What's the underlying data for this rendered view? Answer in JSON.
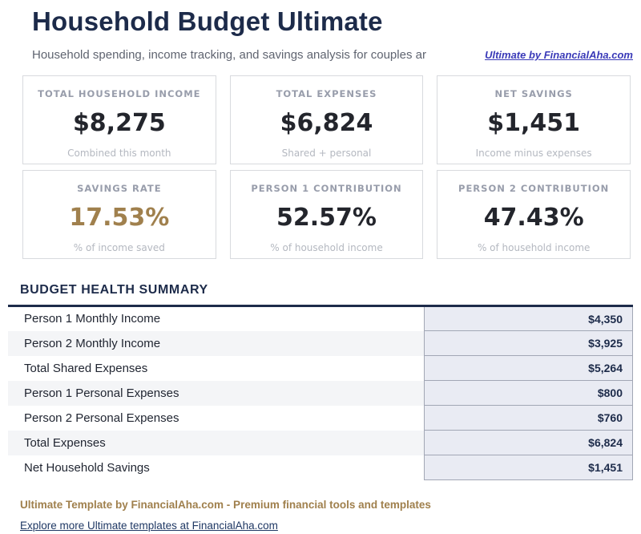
{
  "header": {
    "title": "Household Budget Ultimate",
    "subtitle": "Household spending, income tracking, and savings analysis for couples ar",
    "link_label": "Ultimate by FinancialAha.com"
  },
  "stats": [
    {
      "label": "TOTAL HOUSEHOLD INCOME",
      "value": "$8,275",
      "sub": "Combined this month",
      "value_color": "#23252c"
    },
    {
      "label": "TOTAL EXPENSES",
      "value": "$6,824",
      "sub": "Shared + personal",
      "value_color": "#23252c"
    },
    {
      "label": "NET SAVINGS",
      "value": "$1,451",
      "sub": "Income minus expenses",
      "value_color": "#23252c"
    },
    {
      "label": "SAVINGS RATE",
      "value": "17.53%",
      "sub": "% of income saved",
      "value_color": "#a0804d"
    },
    {
      "label": "PERSON 1 CONTRIBUTION",
      "value": "52.57%",
      "sub": "% of household income",
      "value_color": "#23252c"
    },
    {
      "label": "PERSON 2 CONTRIBUTION",
      "value": "47.43%",
      "sub": "% of household income",
      "value_color": "#23252c"
    }
  ],
  "summary": {
    "heading": "BUDGET HEALTH SUMMARY",
    "rows": [
      {
        "label": "Person 1 Monthly Income",
        "value": "$4,350"
      },
      {
        "label": "Person 2 Monthly Income",
        "value": "$3,925"
      },
      {
        "label": "Total Shared Expenses",
        "value": "$5,264"
      },
      {
        "label": "Person 1 Personal Expenses",
        "value": "$800"
      },
      {
        "label": "Person 2 Personal Expenses",
        "value": "$760"
      },
      {
        "label": "Total Expenses",
        "value": "$6,824"
      },
      {
        "label": "Net Household Savings",
        "value": "$1,451"
      }
    ]
  },
  "footer": {
    "tagline": "Ultimate Template by FinancialAha.com - Premium financial tools and templates",
    "link_label": "Explore more Ultimate templates at FinancialAha.com"
  },
  "colors": {
    "title_navy": "#1d2b4a",
    "gold_accent": "#a0804d",
    "header_link_indigo": "#3a3ab8",
    "footer_link_navy": "#1f3864",
    "table_value_bg": "#e9ebf3",
    "table_border": "#a2a7b5",
    "card_border": "#d8dade"
  }
}
